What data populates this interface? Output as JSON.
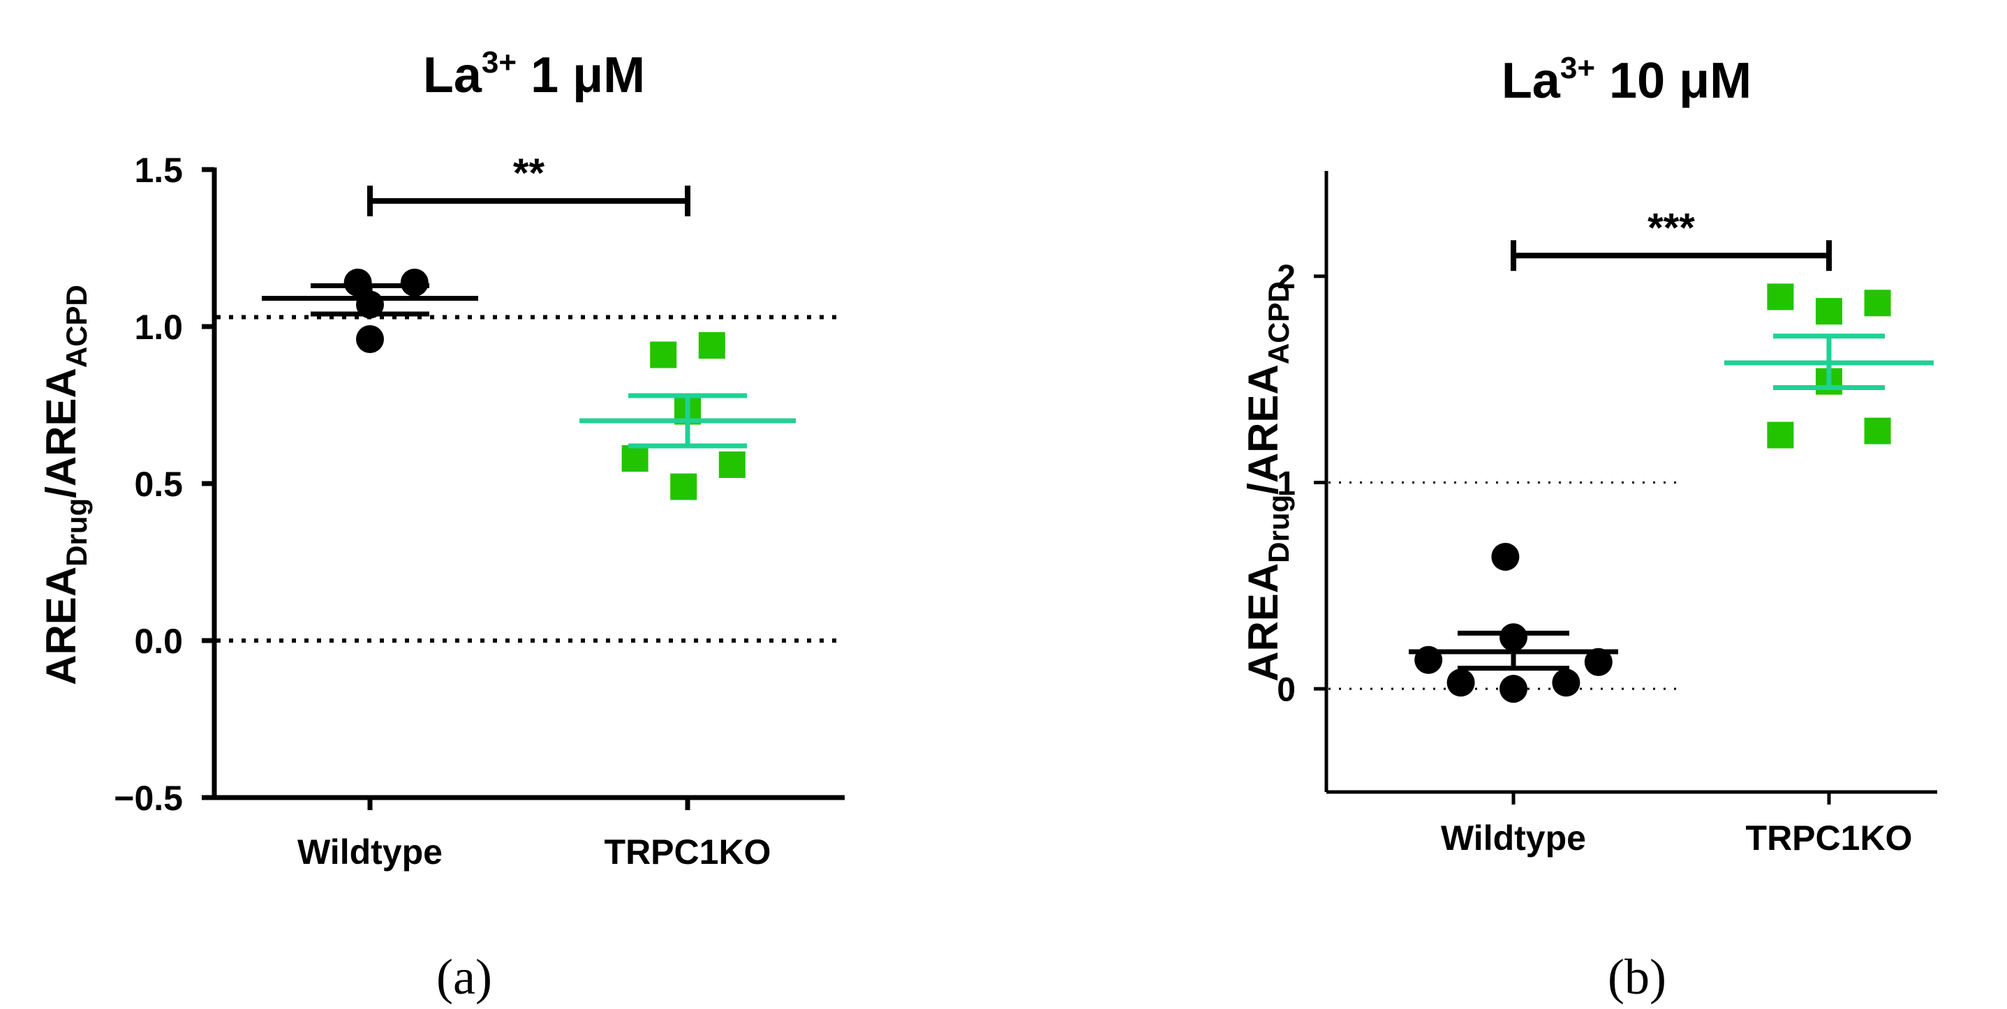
{
  "chart_data": [
    {
      "panel_label": "(a)",
      "type": "scatter",
      "title": {
        "base": "La",
        "sup": "3+",
        "rest": " 1 μM"
      },
      "ylabel": {
        "prefix": "AREA",
        "sub1": "Drug",
        "mid": "/AREA",
        "sub2": "ACPD"
      },
      "xlabel": "",
      "categories": [
        "Wildtype",
        "TRPC1KO"
      ],
      "ylim": [
        -0.5,
        1.5
      ],
      "yticks": [
        -0.5,
        0.0,
        0.5,
        1.0,
        1.5
      ],
      "ytick_labels": [
        "−0.5",
        "0.0",
        "0.5",
        "1.0",
        "1.5"
      ],
      "reference_lines": [
        {
          "y": 1.03,
          "style": "dotted",
          "weight": "heavy"
        },
        {
          "y": 0.0,
          "style": "dotted",
          "weight": "heavy"
        }
      ],
      "series": [
        {
          "category": "Wildtype",
          "marker": "circle",
          "color": "#000000",
          "points": [
            {
              "x_offset": -0.03,
              "y": 1.14
            },
            {
              "x_offset": 0.11,
              "y": 1.14
            },
            {
              "x_offset": 0.0,
              "y": 1.07
            },
            {
              "x_offset": 0.0,
              "y": 0.96
            }
          ],
          "mean": 1.09,
          "sem_low": 1.04,
          "sem_high": 1.13
        },
        {
          "category": "TRPC1KO",
          "marker": "square",
          "color": "#22c400",
          "mean_color": "#1fd195",
          "points": [
            {
              "x_offset": -0.06,
              "y": 0.91
            },
            {
              "x_offset": 0.06,
              "y": 0.94
            },
            {
              "x_offset": 0.0,
              "y": 0.73
            },
            {
              "x_offset": -0.13,
              "y": 0.58
            },
            {
              "x_offset": 0.11,
              "y": 0.56
            },
            {
              "x_offset": -0.01,
              "y": 0.49
            }
          ],
          "mean": 0.7,
          "sem_low": 0.62,
          "sem_high": 0.78
        }
      ],
      "significance": {
        "label": "**",
        "from": "Wildtype",
        "to": "TRPC1KO",
        "y": 1.4
      }
    },
    {
      "panel_label": "(b)",
      "type": "scatter",
      "title": {
        "base": "La",
        "sup": "3+",
        "rest": " 10 μM"
      },
      "ylabel": {
        "prefix": "AREA",
        "sub1": "Drug",
        "mid": "/AREA",
        "sub2": "ACPD"
      },
      "xlabel": "",
      "categories": [
        "Wildtype",
        "TRPC1KO"
      ],
      "ylim": [
        -0.5,
        2.5
      ],
      "yticks": [
        0,
        1,
        2
      ],
      "ytick_labels": [
        "0",
        "1",
        "2"
      ],
      "reference_lines": [
        {
          "y": 1.0,
          "style": "dotted",
          "weight": "light"
        },
        {
          "y": 0.0,
          "style": "dotted",
          "weight": "light"
        }
      ],
      "series": [
        {
          "category": "Wildtype",
          "marker": "circle",
          "color": "#000000",
          "points": [
            {
              "x_offset": -0.02,
              "y": 0.64
            },
            {
              "x_offset": 0.0,
              "y": 0.25
            },
            {
              "x_offset": -0.21,
              "y": 0.14
            },
            {
              "x_offset": 0.21,
              "y": 0.13
            },
            {
              "x_offset": -0.13,
              "y": 0.03
            },
            {
              "x_offset": 0.0,
              "y": 0.0
            },
            {
              "x_offset": 0.13,
              "y": 0.03
            }
          ],
          "mean": 0.18,
          "sem_low": 0.1,
          "sem_high": 0.27
        },
        {
          "category": "TRPC1KO",
          "marker": "square",
          "color": "#22c400",
          "mean_color": "#1fd195",
          "points": [
            {
              "x_offset": -0.12,
              "y": 1.9
            },
            {
              "x_offset": 0.12,
              "y": 1.87
            },
            {
              "x_offset": 0.0,
              "y": 1.83
            },
            {
              "x_offset": 0.0,
              "y": 1.49
            },
            {
              "x_offset": -0.12,
              "y": 1.23
            },
            {
              "x_offset": 0.12,
              "y": 1.25
            }
          ],
          "mean": 1.58,
          "sem_low": 1.46,
          "sem_high": 1.71
        }
      ],
      "significance": {
        "label": "***",
        "from": "Wildtype",
        "to": "TRPC1KO",
        "y": 2.1
      }
    }
  ]
}
